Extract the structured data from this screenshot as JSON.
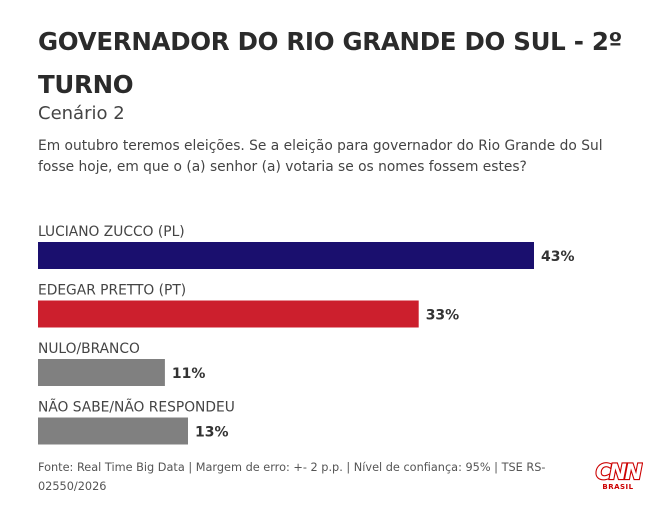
{
  "header": {
    "title": "GOVERNADOR DO RIO GRANDE DO SUL - 2º TURNO",
    "subtitle": "Cenário 2",
    "question": "Em outubro teremos eleições. Se a eleição para governador do Rio Grande do Sul fosse hoje, em que o (a) senhor (a) votaria se os nomes fossem estes?"
  },
  "chart_data": {
    "type": "bar",
    "orientation": "horizontal",
    "title": "GOVERNADOR DO RIO GRANDE DO SUL - 2º TURNO",
    "subtitle": "Cenário 2",
    "categories": [
      "LUCIANO ZUCCO (PL)",
      "EDEGAR PRETTO (PT)",
      "NULO/BRANCO",
      "NÃO SABE/NÃO RESPONDEU"
    ],
    "values": [
      43,
      33,
      11,
      13
    ],
    "value_labels": [
      "43%",
      "33%",
      "11%",
      "13%"
    ],
    "colors": [
      "#1a0f6e",
      "#cc1f2d",
      "#808080",
      "#808080"
    ],
    "unit": "%",
    "xlim": [
      0,
      43
    ],
    "grid": false,
    "legend": "none"
  },
  "footer": {
    "source": "Fonte: Real Time Big Data | Margem de erro: +- 2 p.p. | Nível de confiança: 95% | TSE RS-02550/2026"
  },
  "logo": {
    "text": "CNN",
    "sub": "BRASIL",
    "color": "#cc0000"
  }
}
